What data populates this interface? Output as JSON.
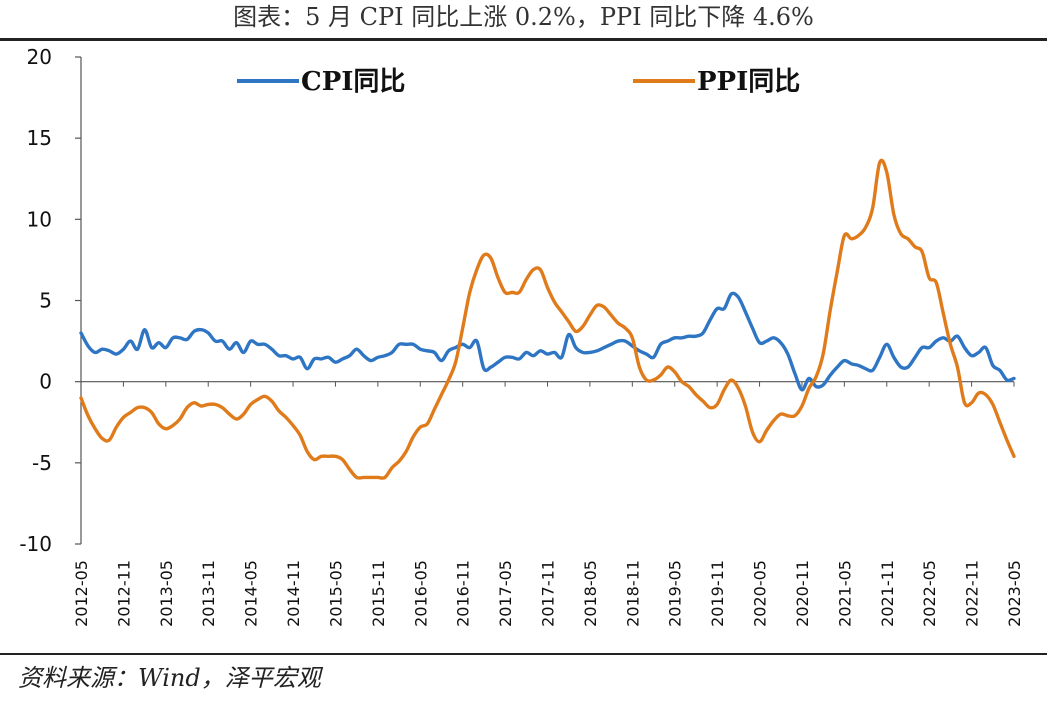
{
  "title": "图表：5 月 CPI 同比上涨 0.2%，PPI 同比下降 4.6%",
  "source": "资料来源：Wind，泽平宏观",
  "chart_data": {
    "type": "line",
    "ylim": [
      -10,
      20
    ],
    "yticks": [
      "20",
      "15",
      "10",
      "5",
      "0",
      "-5",
      "-10"
    ],
    "ytick_values": [
      20,
      15,
      10,
      5,
      0,
      -5,
      -10
    ],
    "x_start": "2012-05",
    "x_end": "2023-05",
    "xtick_labels": [
      "2012-05",
      "2012-11",
      "2013-05",
      "2013-11",
      "2014-05",
      "2014-11",
      "2015-05",
      "2015-11",
      "2016-05",
      "2016-11",
      "2017-05",
      "2017-11",
      "2018-05",
      "2018-11",
      "2019-05",
      "2019-11",
      "2020-05",
      "2020-11",
      "2021-05",
      "2021-11",
      "2022-05",
      "2022-11",
      "2023-05"
    ],
    "legend_position": "top",
    "grid": false,
    "series": [
      {
        "name": "CPI同比",
        "color": "#2E75C4",
        "x": [
          "2012-05",
          "2012-06",
          "2012-07",
          "2012-08",
          "2012-09",
          "2012-10",
          "2012-11",
          "2012-12",
          "2013-01",
          "2013-02",
          "2013-03",
          "2013-04",
          "2013-05",
          "2013-06",
          "2013-07",
          "2013-08",
          "2013-09",
          "2013-10",
          "2013-11",
          "2013-12",
          "2014-01",
          "2014-02",
          "2014-03",
          "2014-04",
          "2014-05",
          "2014-06",
          "2014-07",
          "2014-08",
          "2014-09",
          "2014-10",
          "2014-11",
          "2014-12",
          "2015-01",
          "2015-02",
          "2015-03",
          "2015-04",
          "2015-05",
          "2015-06",
          "2015-07",
          "2015-08",
          "2015-09",
          "2015-10",
          "2015-11",
          "2015-12",
          "2016-01",
          "2016-02",
          "2016-03",
          "2016-04",
          "2016-05",
          "2016-06",
          "2016-07",
          "2016-08",
          "2016-09",
          "2016-10",
          "2016-11",
          "2016-12",
          "2017-01",
          "2017-02",
          "2017-03",
          "2017-04",
          "2017-05",
          "2017-06",
          "2017-07",
          "2017-08",
          "2017-09",
          "2017-10",
          "2017-11",
          "2017-12",
          "2018-01",
          "2018-02",
          "2018-03",
          "2018-04",
          "2018-05",
          "2018-06",
          "2018-07",
          "2018-08",
          "2018-09",
          "2018-10",
          "2018-11",
          "2018-12",
          "2019-01",
          "2019-02",
          "2019-03",
          "2019-04",
          "2019-05",
          "2019-06",
          "2019-07",
          "2019-08",
          "2019-09",
          "2019-10",
          "2019-11",
          "2019-12",
          "2020-01",
          "2020-02",
          "2020-03",
          "2020-04",
          "2020-05",
          "2020-06",
          "2020-07",
          "2020-08",
          "2020-09",
          "2020-10",
          "2020-11",
          "2020-12",
          "2021-01",
          "2021-02",
          "2021-03",
          "2021-04",
          "2021-05",
          "2021-06",
          "2021-07",
          "2021-08",
          "2021-09",
          "2021-10",
          "2021-11",
          "2021-12",
          "2022-01",
          "2022-02",
          "2022-03",
          "2022-04",
          "2022-05",
          "2022-06",
          "2022-07",
          "2022-08",
          "2022-09",
          "2022-10",
          "2022-11",
          "2022-12",
          "2023-01",
          "2023-02",
          "2023-03",
          "2023-04",
          "2023-05"
        ],
        "values": [
          3.0,
          2.2,
          1.8,
          2.0,
          1.9,
          1.7,
          2.0,
          2.5,
          2.0,
          3.2,
          2.1,
          2.4,
          2.1,
          2.7,
          2.7,
          2.6,
          3.1,
          3.2,
          3.0,
          2.5,
          2.5,
          2.0,
          2.4,
          1.8,
          2.5,
          2.3,
          2.3,
          2.0,
          1.6,
          1.6,
          1.4,
          1.5,
          0.8,
          1.4,
          1.4,
          1.5,
          1.2,
          1.4,
          1.6,
          2.0,
          1.6,
          1.3,
          1.5,
          1.6,
          1.8,
          2.3,
          2.3,
          2.3,
          2.0,
          1.9,
          1.8,
          1.3,
          1.9,
          2.1,
          2.3,
          2.1,
          2.5,
          0.8,
          0.9,
          1.2,
          1.5,
          1.5,
          1.4,
          1.8,
          1.6,
          1.9,
          1.7,
          1.8,
          1.5,
          2.9,
          2.1,
          1.8,
          1.8,
          1.9,
          2.1,
          2.3,
          2.5,
          2.5,
          2.2,
          1.9,
          1.7,
          1.5,
          2.3,
          2.5,
          2.7,
          2.7,
          2.8,
          2.8,
          3.0,
          3.8,
          4.5,
          4.5,
          5.4,
          5.2,
          4.3,
          3.3,
          2.4,
          2.5,
          2.7,
          2.4,
          1.7,
          0.5,
          -0.5,
          0.2,
          -0.3,
          -0.2,
          0.4,
          0.9,
          1.3,
          1.1,
          1.0,
          0.8,
          0.7,
          1.5,
          2.3,
          1.5,
          0.9,
          0.9,
          1.5,
          2.1,
          2.1,
          2.5,
          2.7,
          2.5,
          2.8,
          2.1,
          1.6,
          1.8,
          2.1,
          1.0,
          0.7,
          0.1,
          0.2
        ]
      },
      {
        "name": "PPI同比",
        "color": "#E07B1C",
        "x": [
          "2012-05",
          "2012-06",
          "2012-07",
          "2012-08",
          "2012-09",
          "2012-10",
          "2012-11",
          "2012-12",
          "2013-01",
          "2013-02",
          "2013-03",
          "2013-04",
          "2013-05",
          "2013-06",
          "2013-07",
          "2013-08",
          "2013-09",
          "2013-10",
          "2013-11",
          "2013-12",
          "2014-01",
          "2014-02",
          "2014-03",
          "2014-04",
          "2014-05",
          "2014-06",
          "2014-07",
          "2014-08",
          "2014-09",
          "2014-10",
          "2014-11",
          "2014-12",
          "2015-01",
          "2015-02",
          "2015-03",
          "2015-04",
          "2015-05",
          "2015-06",
          "2015-07",
          "2015-08",
          "2015-09",
          "2015-10",
          "2015-11",
          "2015-12",
          "2016-01",
          "2016-02",
          "2016-03",
          "2016-04",
          "2016-05",
          "2016-06",
          "2016-07",
          "2016-08",
          "2016-09",
          "2016-10",
          "2016-11",
          "2016-12",
          "2017-01",
          "2017-02",
          "2017-03",
          "2017-04",
          "2017-05",
          "2017-06",
          "2017-07",
          "2017-08",
          "2017-09",
          "2017-10",
          "2017-11",
          "2017-12",
          "2018-01",
          "2018-02",
          "2018-03",
          "2018-04",
          "2018-05",
          "2018-06",
          "2018-07",
          "2018-08",
          "2018-09",
          "2018-10",
          "2018-11",
          "2018-12",
          "2019-01",
          "2019-02",
          "2019-03",
          "2019-04",
          "2019-05",
          "2019-06",
          "2019-07",
          "2019-08",
          "2019-09",
          "2019-10",
          "2019-11",
          "2019-12",
          "2020-01",
          "2020-02",
          "2020-03",
          "2020-04",
          "2020-05",
          "2020-06",
          "2020-07",
          "2020-08",
          "2020-09",
          "2020-10",
          "2020-11",
          "2020-12",
          "2021-01",
          "2021-02",
          "2021-03",
          "2021-04",
          "2021-05",
          "2021-06",
          "2021-07",
          "2021-08",
          "2021-09",
          "2021-10",
          "2021-11",
          "2021-12",
          "2022-01",
          "2022-02",
          "2022-03",
          "2022-04",
          "2022-05",
          "2022-06",
          "2022-07",
          "2022-08",
          "2022-09",
          "2022-10",
          "2022-11",
          "2022-12",
          "2023-01",
          "2023-02",
          "2023-03",
          "2023-04",
          "2023-05"
        ],
        "values": [
          -1.0,
          -2.1,
          -2.9,
          -3.5,
          -3.6,
          -2.8,
          -2.2,
          -1.9,
          -1.6,
          -1.6,
          -1.9,
          -2.6,
          -2.9,
          -2.7,
          -2.3,
          -1.6,
          -1.3,
          -1.5,
          -1.4,
          -1.4,
          -1.6,
          -2.0,
          -2.3,
          -2.0,
          -1.4,
          -1.1,
          -0.9,
          -1.2,
          -1.8,
          -2.2,
          -2.7,
          -3.3,
          -4.3,
          -4.8,
          -4.6,
          -4.6,
          -4.6,
          -4.8,
          -5.4,
          -5.9,
          -5.9,
          -5.9,
          -5.9,
          -5.9,
          -5.3,
          -4.9,
          -4.3,
          -3.4,
          -2.8,
          -2.6,
          -1.7,
          -0.8,
          0.1,
          1.2,
          3.3,
          5.5,
          6.9,
          7.8,
          7.6,
          6.4,
          5.5,
          5.5,
          5.5,
          6.3,
          6.9,
          6.9,
          5.8,
          4.9,
          4.3,
          3.7,
          3.1,
          3.4,
          4.1,
          4.7,
          4.6,
          4.1,
          3.6,
          3.3,
          2.7,
          0.9,
          0.1,
          0.1,
          0.4,
          0.9,
          0.6,
          0.0,
          -0.3,
          -0.8,
          -1.2,
          -1.6,
          -1.4,
          -0.5,
          0.1,
          -0.4,
          -1.5,
          -3.1,
          -3.7,
          -3.0,
          -2.4,
          -2.0,
          -2.1,
          -2.1,
          -1.5,
          -0.4,
          0.3,
          1.7,
          4.4,
          6.8,
          9.0,
          8.8,
          9.0,
          9.5,
          10.7,
          13.5,
          12.9,
          10.3,
          9.1,
          8.8,
          8.3,
          8.0,
          6.4,
          6.1,
          4.2,
          2.3,
          0.9,
          -1.3,
          -1.3,
          -0.7,
          -0.8,
          -1.4,
          -2.5,
          -3.6,
          -4.6
        ]
      }
    ]
  }
}
